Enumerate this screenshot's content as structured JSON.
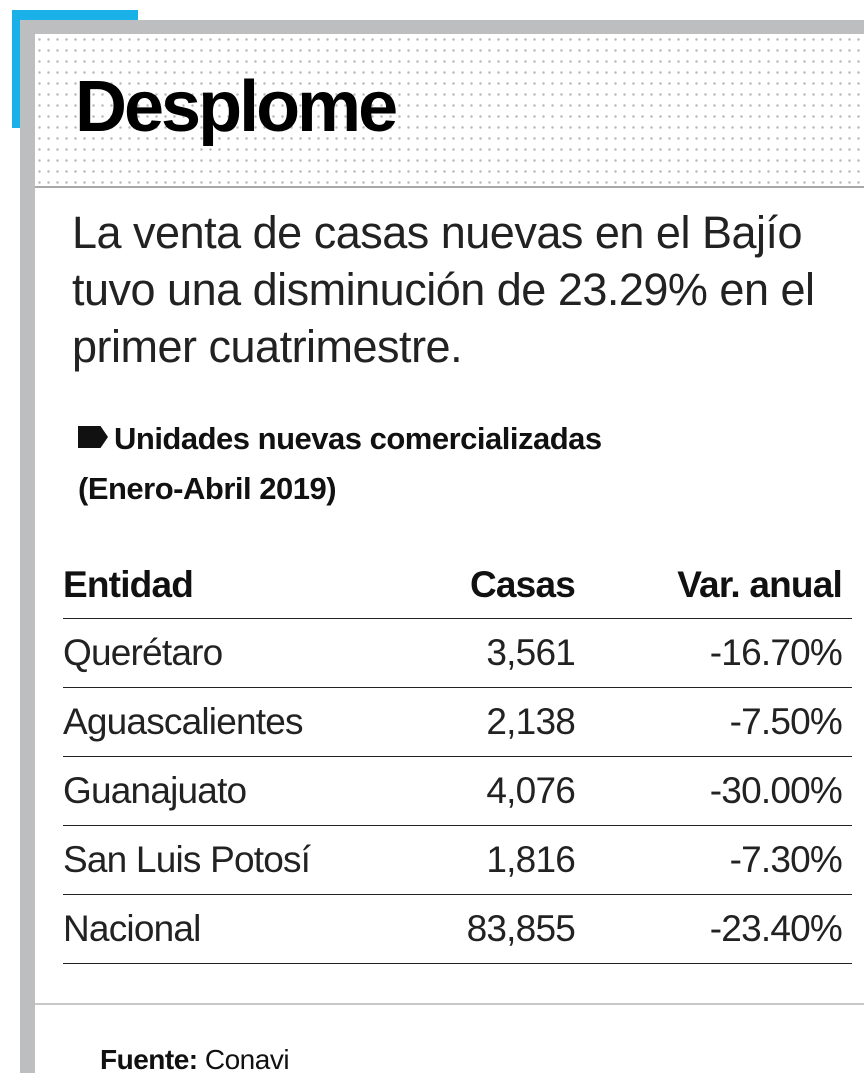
{
  "title": "Desplome",
  "lede": "La venta de casas nuevas en el Bajío tuvo una disminución de 23.29% en el primer cuatrimestre.",
  "subtitle_line1": "Unidades nuevas comercializadas",
  "subtitle_line2": "(Enero-Abril 2019)",
  "colors": {
    "accent": "#1ab0e8",
    "frame": "#bdbec0"
  },
  "chart_data": {
    "type": "table",
    "columns": [
      "Entidad",
      "Casas",
      "Var. anual"
    ],
    "rows": [
      [
        "Querétaro",
        "3,561",
        "-16.70%"
      ],
      [
        "Aguascalientes",
        "2,138",
        "-7.50%"
      ],
      [
        "Guanajuato",
        "4,076",
        "-30.00%"
      ],
      [
        "San Luis Potosí",
        "1,816",
        "-7.30%"
      ],
      [
        "Nacional",
        "83,855",
        "-23.40%"
      ]
    ]
  },
  "source_label": "Fuente:",
  "source_value": "Conavi"
}
